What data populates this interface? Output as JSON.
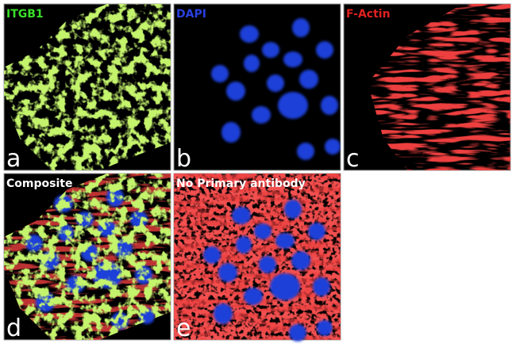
{
  "panels": [
    {
      "label": "ITGB1",
      "letter": "a"
    },
    {
      "label": "DAPI",
      "letter": "b"
    },
    {
      "label": "F-Actin",
      "letter": "c"
    },
    {
      "label": "Composite",
      "letter": "d"
    },
    {
      "label": "No Primary antibody",
      "letter": "e"
    }
  ]
}
